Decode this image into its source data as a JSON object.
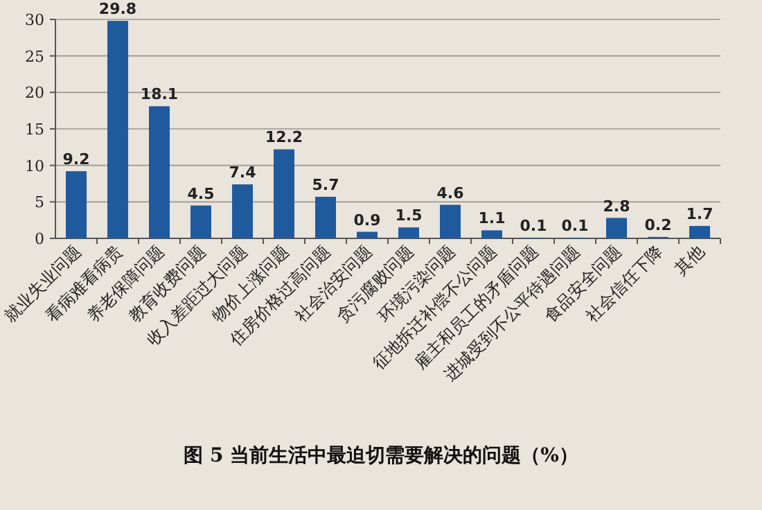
{
  "chart_data": {
    "type": "bar",
    "title": "图 5 当前生活中最迫切需要解决的问题（%）",
    "categories": [
      "就业失业问题",
      "看病难看病贵",
      "养老保障问题",
      "教育收费问题",
      "收入差距过大问题",
      "物价上涨问题",
      "住房价格过高问题",
      "社会治安问题",
      "贪污腐败问题",
      "环境污染问题",
      "征地拆迁补偿不公问题",
      "雇主和员工的矛盾问题",
      "进城受到不公平待遇问题",
      "食品安全问题",
      "社会信任下降",
      "其他"
    ],
    "values": [
      9.2,
      29.8,
      18.1,
      4.5,
      7.4,
      12.2,
      5.7,
      0.9,
      1.5,
      4.6,
      1.1,
      0.1,
      0.1,
      2.8,
      0.2,
      1.7
    ],
    "color": "#1f5a9e",
    "ylim": [
      0,
      30
    ],
    "yticks": [
      0,
      5,
      10,
      15,
      20,
      25,
      30
    ],
    "grid": "y",
    "data_labels": true
  }
}
